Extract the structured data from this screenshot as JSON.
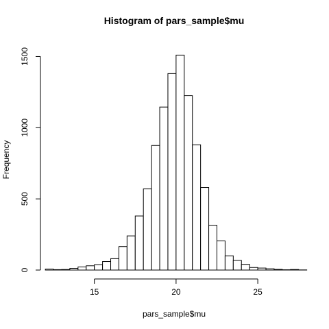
{
  "chart_data": {
    "type": "bar",
    "title": "Histogram of pars_sample$mu",
    "xlabel": "pars_sample$mu",
    "ylabel": "Frequency",
    "xlim": [
      11.7,
      28.1
    ],
    "ylim": [
      0,
      1560
    ],
    "x_ticks": [
      15,
      20,
      25
    ],
    "y_ticks": [
      0,
      500,
      1000,
      1500
    ],
    "bin_width": 0.5,
    "grid": false,
    "legend": "none",
    "bins": [
      {
        "start": 12.0,
        "end": 12.5,
        "count": 7
      },
      {
        "start": 12.5,
        "end": 13.0,
        "count": 3
      },
      {
        "start": 13.0,
        "end": 13.5,
        "count": 4
      },
      {
        "start": 13.5,
        "end": 14.0,
        "count": 12
      },
      {
        "start": 14.0,
        "end": 14.5,
        "count": 22
      },
      {
        "start": 14.5,
        "end": 15.0,
        "count": 30
      },
      {
        "start": 15.0,
        "end": 15.5,
        "count": 38
      },
      {
        "start": 15.5,
        "end": 16.0,
        "count": 60
      },
      {
        "start": 16.0,
        "end": 16.5,
        "count": 80
      },
      {
        "start": 16.5,
        "end": 17.0,
        "count": 165
      },
      {
        "start": 17.0,
        "end": 17.5,
        "count": 240
      },
      {
        "start": 17.5,
        "end": 18.0,
        "count": 380
      },
      {
        "start": 18.0,
        "end": 18.5,
        "count": 570
      },
      {
        "start": 18.5,
        "end": 19.0,
        "count": 875
      },
      {
        "start": 19.0,
        "end": 19.5,
        "count": 1145
      },
      {
        "start": 19.5,
        "end": 20.0,
        "count": 1380
      },
      {
        "start": 20.0,
        "end": 20.5,
        "count": 1510
      },
      {
        "start": 20.5,
        "end": 21.0,
        "count": 1225
      },
      {
        "start": 21.0,
        "end": 21.5,
        "count": 880
      },
      {
        "start": 21.5,
        "end": 22.0,
        "count": 580
      },
      {
        "start": 22.0,
        "end": 22.5,
        "count": 315
      },
      {
        "start": 22.5,
        "end": 23.0,
        "count": 205
      },
      {
        "start": 23.0,
        "end": 23.5,
        "count": 100
      },
      {
        "start": 23.5,
        "end": 24.0,
        "count": 68
      },
      {
        "start": 24.0,
        "end": 24.5,
        "count": 40
      },
      {
        "start": 24.5,
        "end": 25.0,
        "count": 18
      },
      {
        "start": 25.0,
        "end": 25.5,
        "count": 14
      },
      {
        "start": 25.5,
        "end": 26.0,
        "count": 9
      },
      {
        "start": 26.0,
        "end": 26.5,
        "count": 5
      },
      {
        "start": 26.5,
        "end": 27.0,
        "count": 2
      },
      {
        "start": 27.0,
        "end": 27.5,
        "count": 4
      },
      {
        "start": 27.5,
        "end": 28.0,
        "count": 1
      }
    ]
  }
}
